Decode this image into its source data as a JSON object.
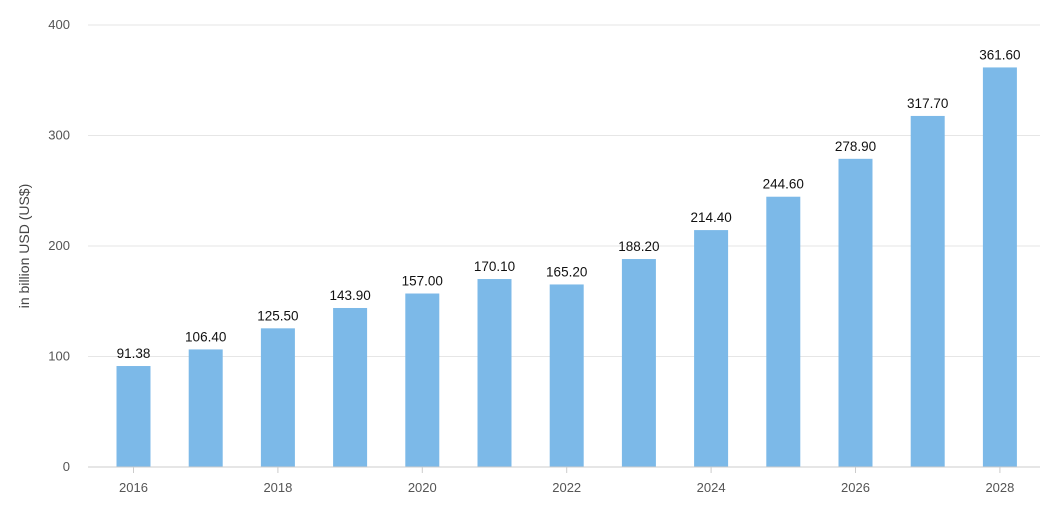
{
  "chart_data": {
    "type": "bar",
    "categories": [
      "2016",
      "2017",
      "2018",
      "2019",
      "2020",
      "2021",
      "2022",
      "2023",
      "2024",
      "2025",
      "2026",
      "2027",
      "2028"
    ],
    "values": [
      91.38,
      106.4,
      125.5,
      143.9,
      157.0,
      170.1,
      165.2,
      188.2,
      214.4,
      244.6,
      278.9,
      317.7,
      361.6
    ],
    "value_labels": [
      "91.38",
      "106.40",
      "125.50",
      "143.90",
      "157.00",
      "170.10",
      "165.20",
      "188.20",
      "214.40",
      "244.60",
      "278.90",
      "317.70",
      "361.60"
    ],
    "x_tick_labels": [
      "2016",
      "2018",
      "2020",
      "2022",
      "2024",
      "2026",
      "2028"
    ],
    "y_ticks": [
      0,
      100,
      200,
      300,
      400
    ],
    "ylabel": "in billion USD (US$)",
    "ylim": [
      0,
      400
    ],
    "grid": true,
    "legend": "none",
    "bar_color": "#7cb9e8"
  }
}
